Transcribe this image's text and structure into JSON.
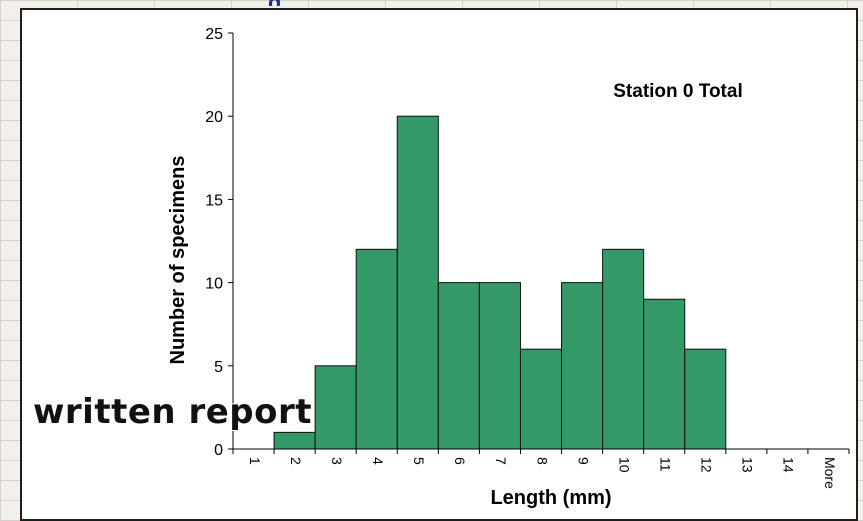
{
  "background": {
    "title_fragment": "g"
  },
  "overlay_text": "written report",
  "colors": {
    "bar_fill": "#339966",
    "bar_stroke": "#111111",
    "axis": "#000000"
  },
  "chart_data": {
    "type": "bar",
    "title": "Station 0 Total",
    "xlabel": "Length (mm)",
    "ylabel": "Number of specimens",
    "categories": [
      "1",
      "2",
      "3",
      "4",
      "5",
      "6",
      "7",
      "8",
      "9",
      "10",
      "11",
      "12",
      "13",
      "14",
      "More"
    ],
    "values": [
      0,
      1,
      5,
      12,
      20,
      10,
      10,
      6,
      10,
      12,
      9,
      6,
      0,
      0,
      0
    ],
    "ylim": [
      0,
      25
    ],
    "yticks": [
      0,
      5,
      10,
      15,
      20,
      25
    ],
    "grid": false,
    "legend": "none"
  }
}
